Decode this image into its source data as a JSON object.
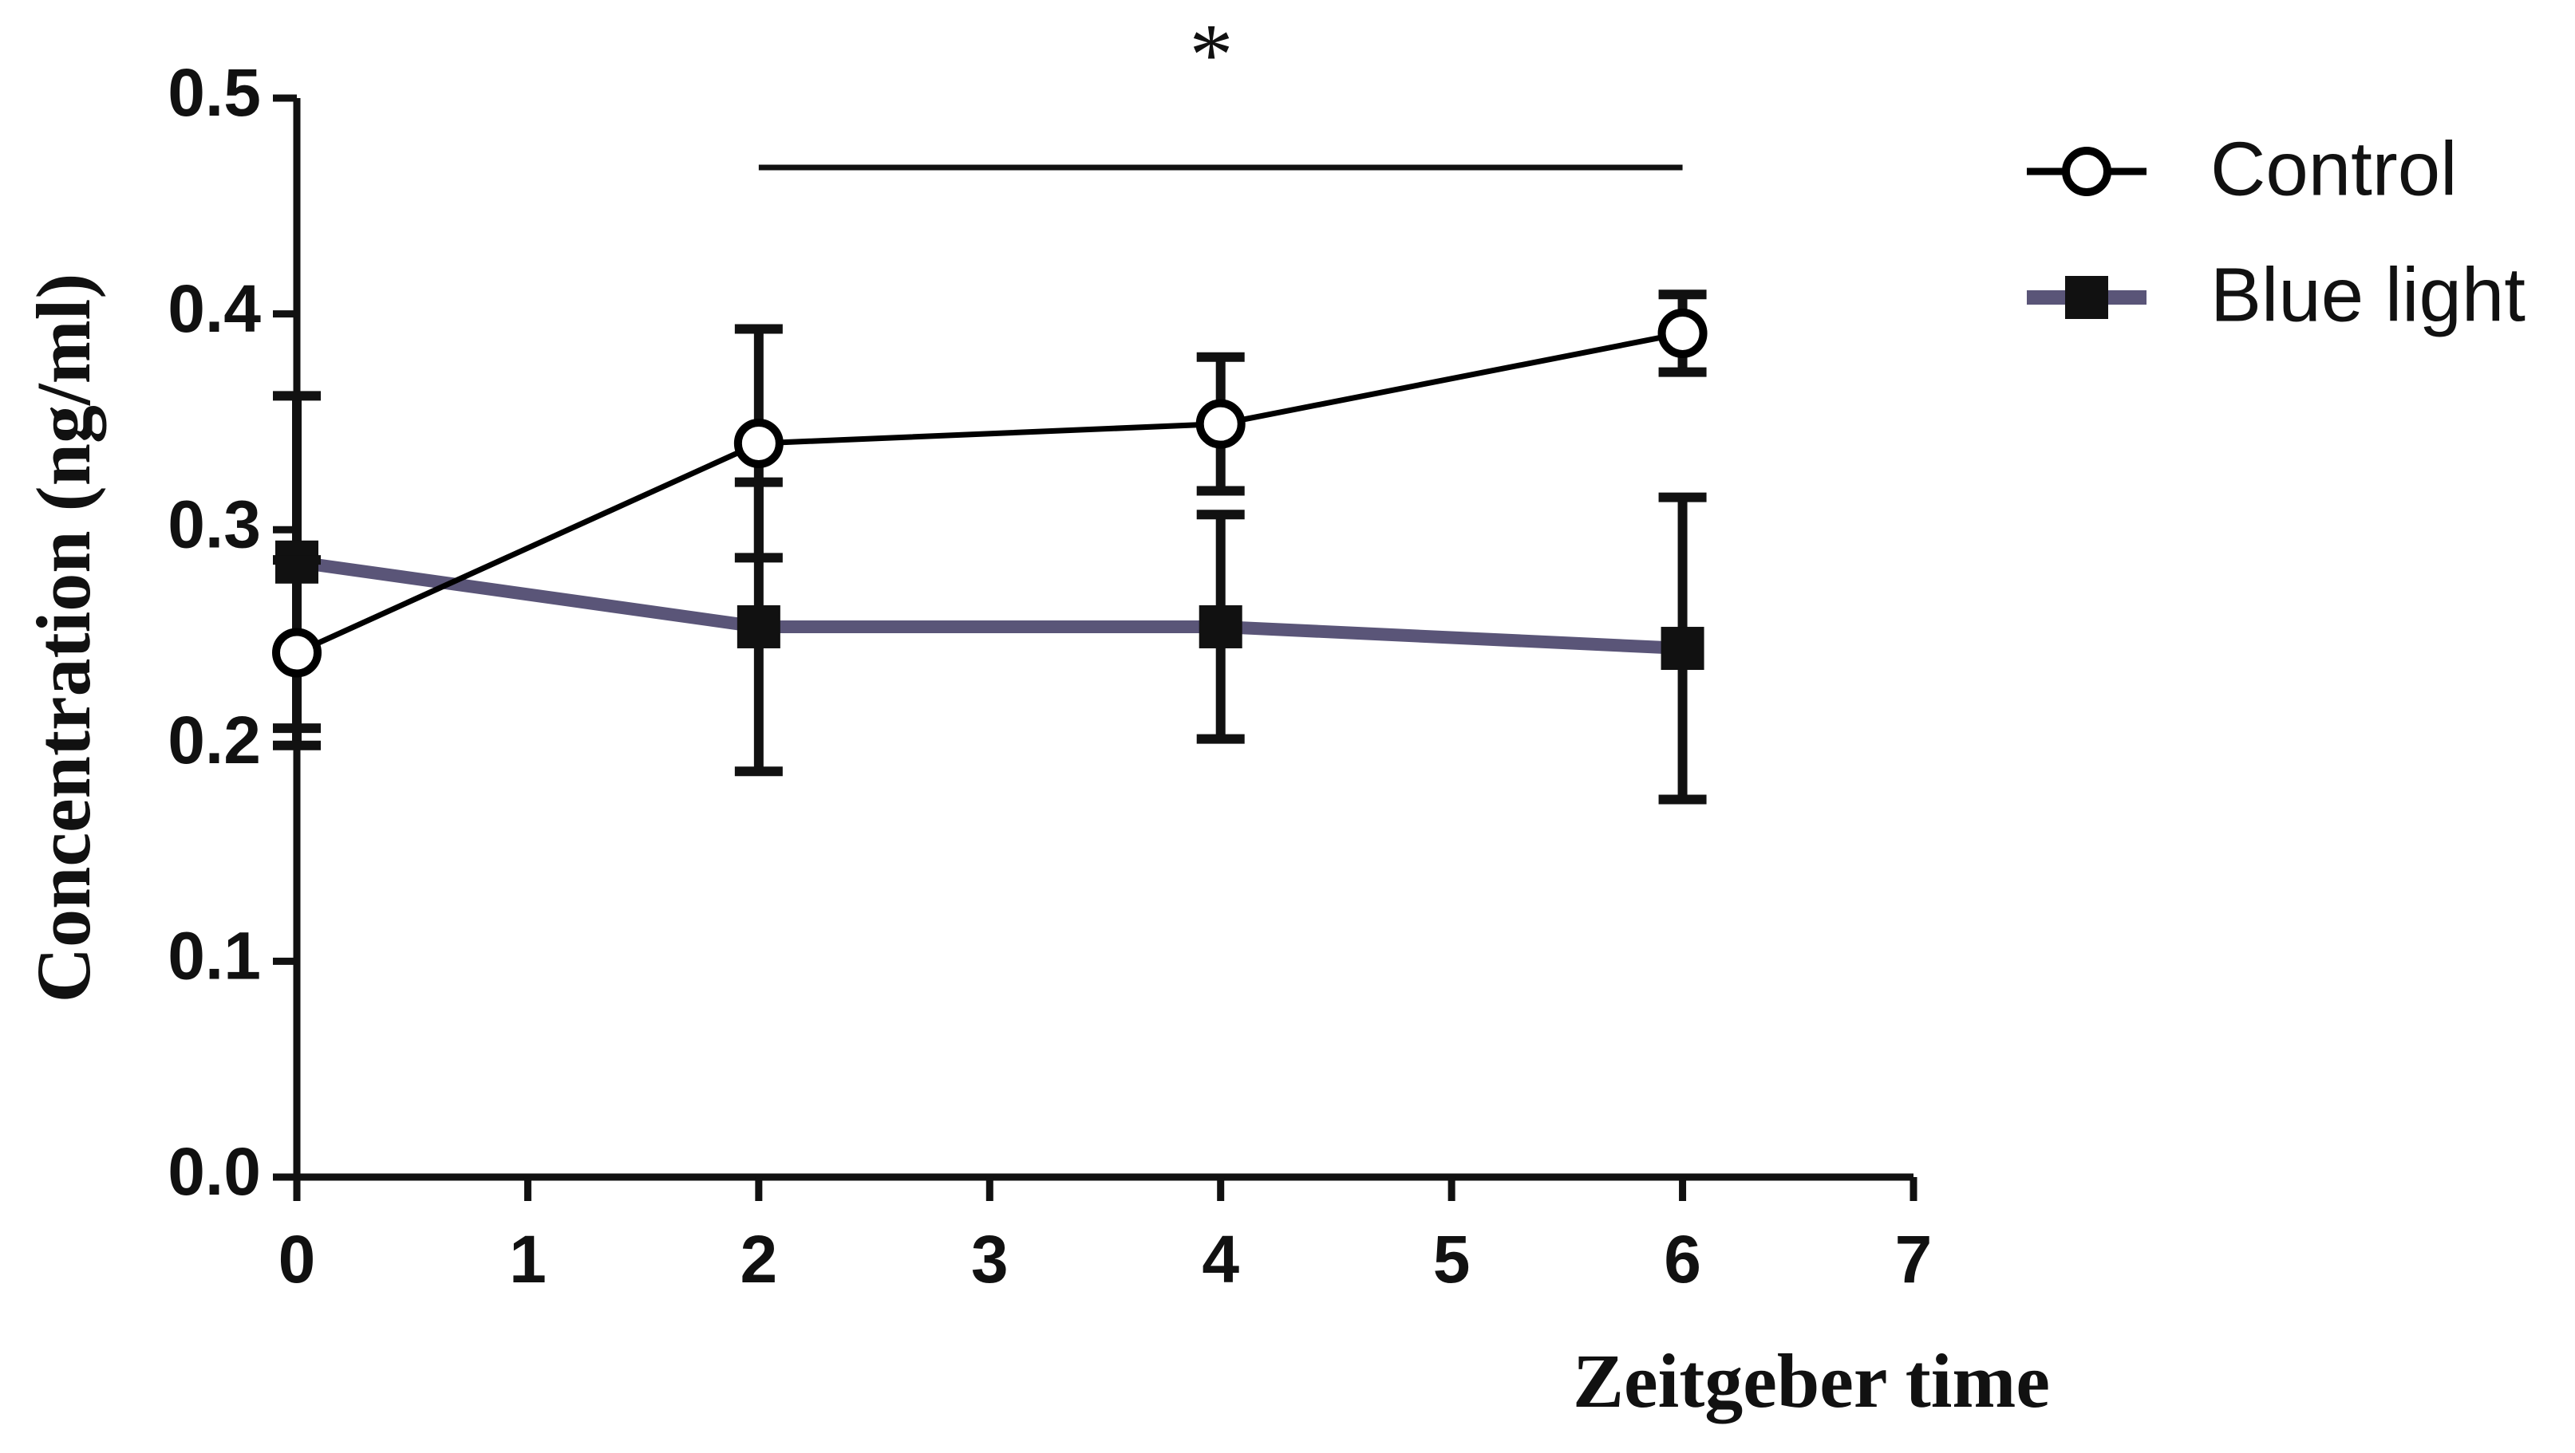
{
  "chart_data": {
    "type": "line",
    "x_label": "Zeitgeber time",
    "y_label": "Concentration (ng/ml)",
    "annotation": "*",
    "x": [
      0,
      2,
      4,
      6
    ],
    "series": [
      {
        "name": "Control",
        "color": "#000000",
        "marker": "open-circle",
        "values": [
          0.243,
          0.34,
          0.349,
          0.391
        ],
        "errors": [
          0.043,
          0.053,
          0.031,
          0.018
        ]
      },
      {
        "name": "Blue light",
        "color": "#5a5578",
        "marker": "filled-square",
        "values": [
          0.285,
          0.255,
          0.255,
          0.245
        ],
        "errors": [
          0.077,
          0.067,
          0.052,
          0.07
        ]
      }
    ],
    "xlim": [
      0,
      7
    ],
    "xticks": [
      0,
      1,
      2,
      3,
      4,
      5,
      6,
      7
    ],
    "ylim": [
      0,
      0.5
    ],
    "yticks": [
      {
        "value": 0,
        "label": "0.0"
      },
      0.1,
      0.2,
      0.3,
      0.4,
      0.5
    ],
    "legend": "top-right",
    "grid": false
  }
}
